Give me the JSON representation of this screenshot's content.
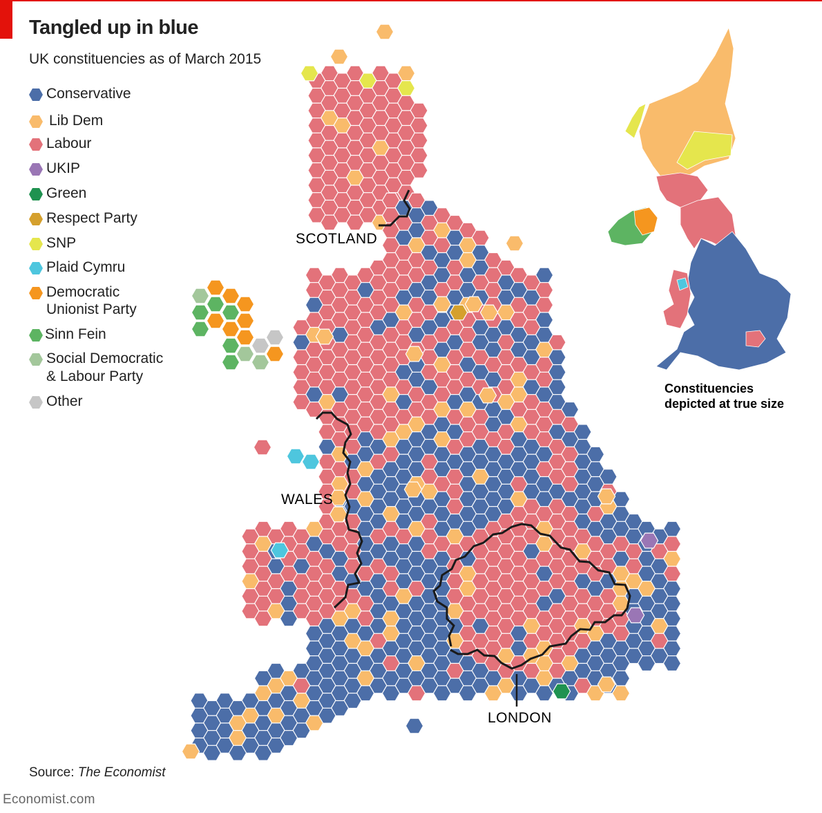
{
  "title": "Tangled up in blue",
  "subtitle": "UK constituencies as of March 2015",
  "source_label": "Source:",
  "source_name": "The Economist",
  "brand": "Economist.com",
  "inset_caption": [
    "Constituencies",
    "depicted at true size"
  ],
  "region_labels": {
    "scotland": "SCOTLAND",
    "wales": "WALES",
    "london": "LONDON"
  },
  "legend": [
    {
      "key": "con",
      "label": "Conservative",
      "color": "#4c6ea8"
    },
    {
      "key": "ld",
      "label": "Lib Dem",
      "color": "#f9bb6b"
    },
    {
      "key": "lab",
      "label": "Labour",
      "color": "#e3727a"
    },
    {
      "key": "ukip",
      "label": "UKIP",
      "color": "#9a76b5"
    },
    {
      "key": "grn",
      "label": "Green",
      "color": "#1f9250"
    },
    {
      "key": "resp",
      "label": "Respect Party",
      "color": "#d5a02d"
    },
    {
      "key": "snp",
      "label": "SNP",
      "color": "#e5e64d"
    },
    {
      "key": "pc",
      "label": "Plaid Cymru",
      "color": "#4ec6de"
    },
    {
      "key": "dup",
      "label": "Democratic Unionist Party",
      "label_lines": [
        "Democratic",
        "Unionist Party"
      ],
      "color": "#f5961f"
    },
    {
      "key": "sf",
      "label": "Sinn Fein",
      "color": "#5db462"
    },
    {
      "key": "sdlp",
      "label": "Social Democratic & Labour Party",
      "label_lines": [
        "Social Democratic",
        "& Labour Party"
      ],
      "color": "#a3c79b"
    },
    {
      "key": "oth",
      "label": "Other",
      "color": "#c6c6c6"
    }
  ],
  "colors": {
    "border_line": "#1a1a1a",
    "accent": "#e3120b"
  }
}
